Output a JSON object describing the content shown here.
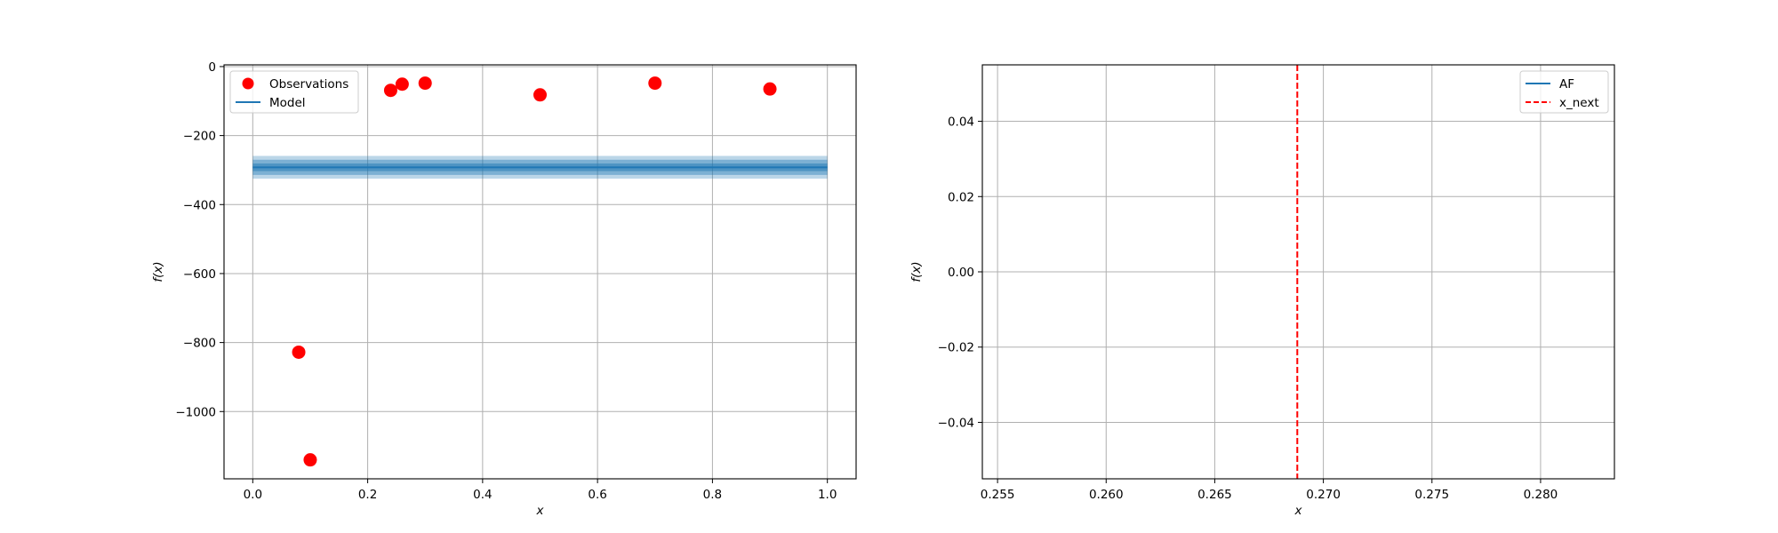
{
  "figure": {
    "background": "#ffffff"
  },
  "chart_data": [
    {
      "type": "scatter",
      "title": "",
      "xlabel": "x",
      "ylabel": "f(x)",
      "xlim": [
        -0.05,
        1.05
      ],
      "ylim": [
        -1195,
        5
      ],
      "grid": true,
      "legend_position": "top-left",
      "xticks": [
        0.0,
        0.2,
        0.4,
        0.6,
        0.8,
        1.0
      ],
      "xtick_labels": [
        "0.0",
        "0.2",
        "0.4",
        "0.6",
        "0.8",
        "1.0"
      ],
      "yticks": [
        0,
        -200,
        -400,
        -600,
        -800,
        -1000
      ],
      "ytick_labels": [
        "0",
        "−200",
        "−400",
        "−600",
        "−800",
        "−1000"
      ],
      "series": [
        {
          "name": "Observations",
          "kind": "scatter",
          "color": "#ff0000",
          "x": [
            0.08,
            0.1,
            0.24,
            0.26,
            0.3,
            0.5,
            0.7,
            0.9
          ],
          "y": [
            -828,
            -1140,
            -69,
            -51,
            -48,
            -82,
            -48,
            -65
          ]
        },
        {
          "name": "Model",
          "kind": "line",
          "color": "#1f77b4",
          "x": [
            0.0,
            1.0
          ],
          "y": [
            -292,
            -292
          ],
          "bands": [
            {
              "lower": -325,
              "upper": -259,
              "color": "#1f77b4",
              "opacity": 0.3
            },
            {
              "lower": -314,
              "upper": -270,
              "color": "#1f77b4",
              "opacity": 0.4
            },
            {
              "lower": -303,
              "upper": -281,
              "color": "#1f77b4",
              "opacity": 0.5
            }
          ]
        }
      ]
    },
    {
      "type": "line",
      "title": "",
      "xlabel": "x",
      "ylabel": "f(x)",
      "xlim": [
        0.2543,
        0.2834
      ],
      "ylim": [
        -0.055,
        0.055
      ],
      "grid": true,
      "legend_position": "top-right",
      "xticks": [
        0.255,
        0.26,
        0.265,
        0.27,
        0.275,
        0.28
      ],
      "xtick_labels": [
        "0.255",
        "0.260",
        "0.265",
        "0.270",
        "0.275",
        "0.280"
      ],
      "yticks": [
        0.04,
        0.02,
        0.0,
        -0.02,
        -0.04
      ],
      "ytick_labels": [
        "0.04",
        "0.02",
        "0.00",
        "−0.02",
        "−0.04"
      ],
      "series": [
        {
          "name": "AF",
          "kind": "line",
          "color": "#1f77b4",
          "x": [],
          "y": []
        },
        {
          "name": "x_next",
          "kind": "vline",
          "color": "#ff0000",
          "x": 0.2688,
          "dashed": true
        }
      ]
    }
  ]
}
